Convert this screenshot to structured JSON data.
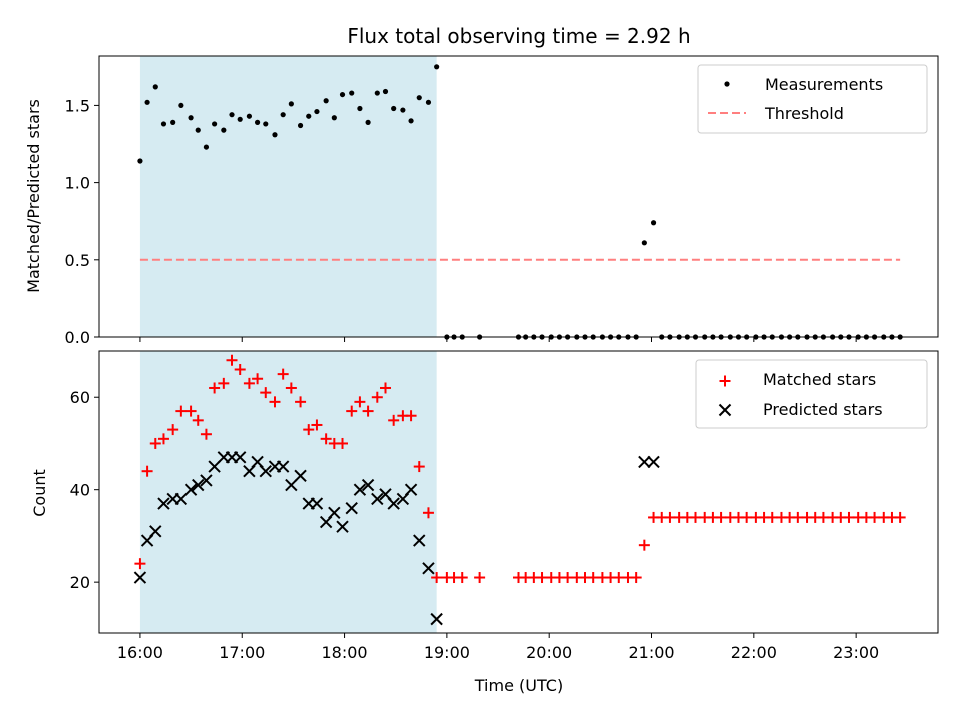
{
  "chart_data": {
    "type": "scatter",
    "title": "Flux total observing time = 2.92 h",
    "xlabel": "Time (UTC)",
    "x_ticks": [
      "16:00",
      "17:00",
      "18:00",
      "19:00",
      "20:00",
      "21:00",
      "22:00",
      "23:00"
    ],
    "x_range_hours": [
      15.6,
      23.8
    ],
    "shaded_span_hours": [
      16.0,
      18.9
    ],
    "top": {
      "ylabel": "Matched/Predicted stars",
      "ylim": [
        0.0,
        1.82
      ],
      "y_ticks": [
        0.0,
        0.5,
        1.0,
        1.5
      ],
      "y_tick_labels": [
        "0.0",
        "0.5",
        "1.0",
        "1.5"
      ],
      "threshold": 0.5,
      "legend": [
        "Measurements",
        "Threshold"
      ],
      "measurements": {
        "t": [
          16.0,
          16.07,
          16.15,
          16.23,
          16.32,
          16.4,
          16.5,
          16.57,
          16.65,
          16.73,
          16.82,
          16.9,
          16.98,
          17.07,
          17.15,
          17.23,
          17.32,
          17.4,
          17.48,
          17.57,
          17.65,
          17.73,
          17.82,
          17.9,
          17.98,
          18.07,
          18.15,
          18.23,
          18.32,
          18.4,
          18.48,
          18.57,
          18.65,
          18.73,
          18.82,
          18.9,
          19.0,
          19.07,
          19.15,
          19.32,
          19.7,
          19.77,
          19.85,
          19.93,
          20.02,
          20.1,
          20.18,
          20.27,
          20.35,
          20.43,
          20.52,
          20.6,
          20.68,
          20.77,
          20.85,
          20.93,
          21.02,
          21.1,
          21.18,
          21.27,
          21.35,
          21.43,
          21.52,
          21.6,
          21.68,
          21.77,
          21.85,
          21.93,
          22.02,
          22.1,
          22.18,
          22.27,
          22.35,
          22.43,
          22.52,
          22.6,
          22.68,
          22.77,
          22.85,
          22.93,
          23.02,
          23.1,
          23.18,
          23.27,
          23.35,
          23.43
        ],
        "y": [
          1.14,
          1.52,
          1.62,
          1.38,
          1.39,
          1.5,
          1.42,
          1.34,
          1.23,
          1.38,
          1.34,
          1.44,
          1.41,
          1.43,
          1.39,
          1.38,
          1.31,
          1.44,
          1.51,
          1.37,
          1.43,
          1.46,
          1.53,
          1.42,
          1.57,
          1.58,
          1.48,
          1.39,
          1.58,
          1.59,
          1.48,
          1.47,
          1.4,
          1.55,
          1.52,
          1.75,
          0.0,
          0.0,
          0.0,
          0.0,
          0.0,
          0.0,
          0.0,
          0.0,
          0.0,
          0.0,
          0.0,
          0.0,
          0.0,
          0.0,
          0.0,
          0.0,
          0.0,
          0.0,
          0.0,
          0.61,
          0.74,
          0.0,
          0.0,
          0.0,
          0.0,
          0.0,
          0.0,
          0.0,
          0.0,
          0.0,
          0.0,
          0.0,
          0.0,
          0.0,
          0.0,
          0.0,
          0.0,
          0.0,
          0.0,
          0.0,
          0.0,
          0.0,
          0.0,
          0.0,
          0.0,
          0.0,
          0.0,
          0.0,
          0.0,
          0.0
        ]
      }
    },
    "bottom": {
      "ylabel": "Count",
      "ylim": [
        9,
        70
      ],
      "y_ticks": [
        20,
        40,
        60
      ],
      "y_tick_labels": [
        "20",
        "40",
        "60"
      ],
      "legend": [
        "Matched stars",
        "Predicted stars"
      ],
      "matched": {
        "t": [
          16.0,
          16.07,
          16.15,
          16.23,
          16.32,
          16.4,
          16.5,
          16.57,
          16.65,
          16.73,
          16.82,
          16.9,
          16.98,
          17.07,
          17.15,
          17.23,
          17.32,
          17.4,
          17.48,
          17.57,
          17.65,
          17.73,
          17.82,
          17.9,
          17.98,
          18.07,
          18.15,
          18.23,
          18.32,
          18.4,
          18.48,
          18.57,
          18.65,
          18.73,
          18.82,
          18.9,
          19.0,
          19.07,
          19.15,
          19.32,
          19.7,
          19.77,
          19.85,
          19.93,
          20.02,
          20.1,
          20.18,
          20.27,
          20.35,
          20.43,
          20.52,
          20.6,
          20.68,
          20.77,
          20.85,
          20.93,
          21.02,
          21.1,
          21.18,
          21.27,
          21.35,
          21.43,
          21.52,
          21.6,
          21.68,
          21.77,
          21.85,
          21.93,
          22.02,
          22.1,
          22.18,
          22.27,
          22.35,
          22.43,
          22.52,
          22.6,
          22.68,
          22.77,
          22.85,
          22.93,
          23.02,
          23.1,
          23.18,
          23.27,
          23.35,
          23.43
        ],
        "y": [
          24,
          44,
          50,
          51,
          53,
          57,
          57,
          55,
          52,
          62,
          63,
          68,
          66,
          63,
          64,
          61,
          59,
          65,
          62,
          59,
          53,
          54,
          51,
          50,
          50,
          57,
          59,
          57,
          60,
          62,
          55,
          56,
          56,
          45,
          35,
          21,
          21,
          21,
          21,
          21,
          21,
          21,
          21,
          21,
          21,
          21,
          21,
          21,
          21,
          21,
          21,
          21,
          21,
          21,
          21,
          28,
          34,
          34,
          34,
          34,
          34,
          34,
          34,
          34,
          34,
          34,
          34,
          34,
          34,
          34,
          34,
          34,
          34,
          34,
          34,
          34,
          34,
          34,
          34,
          34,
          34,
          34,
          34,
          34,
          34,
          34
        ]
      },
      "predicted": {
        "t": [
          16.0,
          16.07,
          16.15,
          16.23,
          16.32,
          16.4,
          16.5,
          16.57,
          16.65,
          16.73,
          16.82,
          16.9,
          16.98,
          17.07,
          17.15,
          17.23,
          17.32,
          17.4,
          17.48,
          17.57,
          17.65,
          17.73,
          17.82,
          17.9,
          17.98,
          18.07,
          18.15,
          18.23,
          18.32,
          18.4,
          18.48,
          18.57,
          18.65,
          18.73,
          18.82,
          18.9,
          20.93,
          21.02
        ],
        "y": [
          21,
          29,
          31,
          37,
          38,
          38,
          40,
          41,
          42,
          45,
          47,
          47,
          47,
          44,
          46,
          44,
          45,
          45,
          41,
          43,
          37,
          37,
          33,
          35,
          32,
          36,
          40,
          41,
          38,
          39,
          37,
          38,
          40,
          29,
          23,
          12,
          46,
          46
        ]
      }
    }
  }
}
